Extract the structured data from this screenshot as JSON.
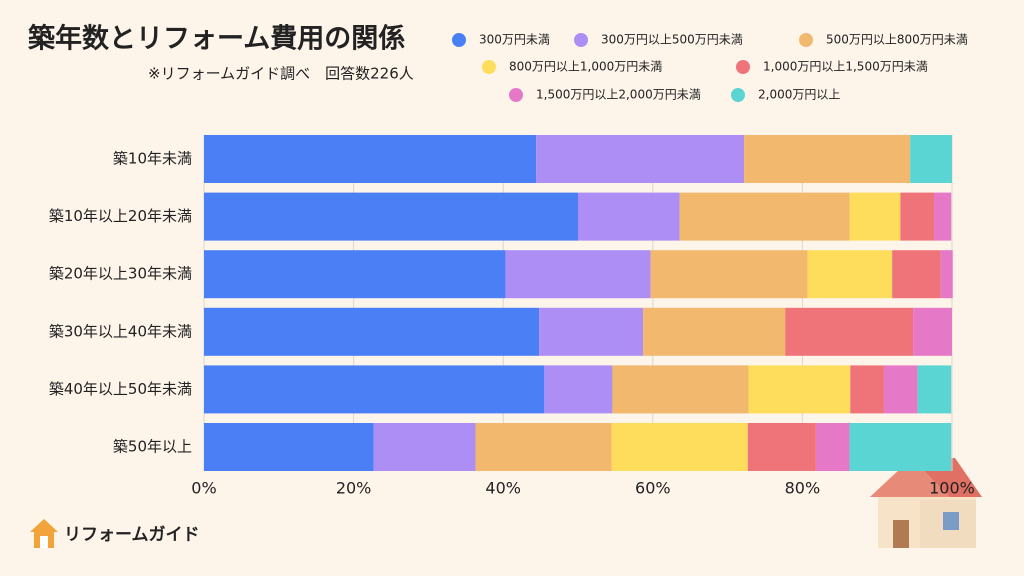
{
  "chart_data": {
    "type": "stacked-barh",
    "title": "築年数とリフォーム費用の関係",
    "subtitle": "※リフォームガイド調べ　回答数226人",
    "logo": "リフォームガイド",
    "categories": [
      "築10年未満",
      "築10年以上20年未満",
      "築20年以上30年未満",
      "築30年以上40年未満",
      "築40年以上50年未満",
      "築50年以上"
    ],
    "series": [
      {
        "name": "300万円未満",
        "color": "#4a7ff5",
        "values": [
          44.4,
          50.0,
          40.3,
          44.8,
          45.5,
          22.7
        ]
      },
      {
        "name": "300万円以上500万円未満",
        "color": "#ad8ef5",
        "values": [
          27.8,
          13.6,
          19.4,
          13.9,
          9.1,
          13.6
        ]
      },
      {
        "name": "500万円以上800万円未満",
        "color": "#f2b96e",
        "values": [
          22.2,
          22.7,
          21.0,
          19.0,
          18.2,
          18.2
        ]
      },
      {
        "name": "800万円以上1,000万円未満",
        "color": "#ffdd5c",
        "values": [
          0,
          6.8,
          11.3,
          0,
          13.6,
          18.2
        ]
      },
      {
        "name": "1,000万円以上1,500万円未満",
        "color": "#ef7479",
        "values": [
          0,
          4.5,
          6.5,
          17.1,
          4.5,
          9.1
        ]
      },
      {
        "name": "1,500万円以上2,000万円未満",
        "color": "#e678c8",
        "values": [
          0,
          2.3,
          1.6,
          5.2,
          4.5,
          4.5
        ]
      },
      {
        "name": "2,000万円以上",
        "color": "#5bd5d4",
        "values": [
          5.6,
          0,
          0,
          0,
          4.5,
          13.6
        ]
      }
    ],
    "xlim": [
      0,
      100
    ],
    "xticks": [
      {
        "value": 0,
        "label": "0%"
      },
      {
        "value": 20,
        "label": "20%"
      },
      {
        "value": 40,
        "label": "40%"
      },
      {
        "value": 60,
        "label": "60%"
      },
      {
        "value": 80,
        "label": "80%"
      },
      {
        "value": 100,
        "label": "100%"
      }
    ],
    "grid": true
  }
}
